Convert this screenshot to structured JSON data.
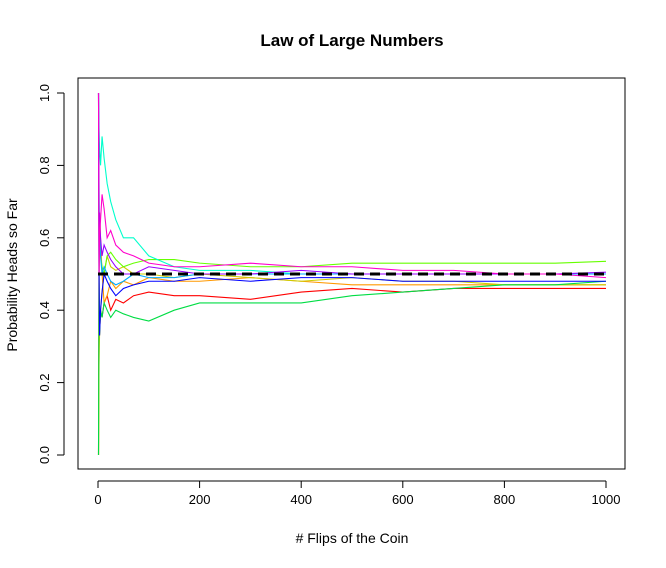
{
  "chart_data": {
    "type": "line",
    "title": "Law of Large Numbers",
    "xlabel": "# Flips of the Coin",
    "ylabel": "Probability Heads so Far",
    "xlim": [
      0,
      1000
    ],
    "ylim": [
      0,
      1
    ],
    "xticks": [
      "0",
      "200",
      "400",
      "600",
      "800",
      "1000"
    ],
    "yticks": [
      "0.0",
      "0.2",
      "0.4",
      "0.6",
      "0.8",
      "1.0"
    ],
    "grid": false,
    "reference_line": {
      "y": 0.5,
      "style": "dashed",
      "color": "#000000"
    },
    "series": [
      {
        "color": "#ff0000",
        "x": [
          1,
          2,
          3,
          5,
          8,
          12,
          18,
          25,
          35,
          50,
          70,
          100,
          150,
          200,
          300,
          400,
          500,
          600,
          700,
          800,
          900,
          1000
        ],
        "y": [
          0,
          0.5,
          0.33,
          0.4,
          0.38,
          0.42,
          0.44,
          0.4,
          0.43,
          0.42,
          0.44,
          0.45,
          0.44,
          0.44,
          0.43,
          0.45,
          0.46,
          0.45,
          0.46,
          0.46,
          0.46,
          0.46
        ]
      },
      {
        "color": "#ff9900",
        "x": [
          1,
          2,
          3,
          5,
          8,
          12,
          18,
          25,
          35,
          50,
          70,
          100,
          150,
          200,
          300,
          400,
          500,
          600,
          700,
          800,
          900,
          1000
        ],
        "y": [
          0,
          0.5,
          0.67,
          0.6,
          0.5,
          0.42,
          0.44,
          0.48,
          0.46,
          0.48,
          0.47,
          0.49,
          0.48,
          0.48,
          0.49,
          0.48,
          0.47,
          0.47,
          0.47,
          0.47,
          0.47,
          0.47
        ]
      },
      {
        "color": "#cccc00",
        "x": [
          1,
          2,
          3,
          5,
          8,
          12,
          18,
          25,
          35,
          50,
          70,
          100,
          150,
          200,
          300,
          400,
          500,
          600,
          700,
          800,
          900,
          1000
        ],
        "y": [
          0,
          0.25,
          0.33,
          0.4,
          0.45,
          0.5,
          0.55,
          0.52,
          0.51,
          0.52,
          0.5,
          0.5,
          0.49,
          0.5,
          0.49,
          0.48,
          0.49,
          0.48,
          0.48,
          0.47,
          0.47,
          0.47
        ]
      },
      {
        "color": "#66ff00",
        "x": [
          1,
          2,
          3,
          5,
          8,
          12,
          18,
          25,
          35,
          50,
          70,
          100,
          150,
          200,
          300,
          400,
          500,
          600,
          700,
          800,
          900,
          1000
        ],
        "y": [
          1,
          0.5,
          0.6,
          0.55,
          0.52,
          0.5,
          0.55,
          0.56,
          0.54,
          0.52,
          0.53,
          0.54,
          0.54,
          0.53,
          0.52,
          0.52,
          0.53,
          0.53,
          0.53,
          0.53,
          0.53,
          0.535
        ]
      },
      {
        "color": "#00dd44",
        "x": [
          1,
          2,
          3,
          5,
          8,
          12,
          18,
          25,
          35,
          50,
          70,
          100,
          150,
          200,
          300,
          400,
          500,
          600,
          700,
          800,
          900,
          1000
        ],
        "y": [
          0,
          0.5,
          0.33,
          0.4,
          0.38,
          0.42,
          0.4,
          0.38,
          0.4,
          0.39,
          0.38,
          0.37,
          0.4,
          0.42,
          0.42,
          0.42,
          0.44,
          0.45,
          0.46,
          0.47,
          0.47,
          0.48
        ]
      },
      {
        "color": "#00ffcc",
        "x": [
          1,
          2,
          3,
          5,
          8,
          12,
          18,
          25,
          35,
          50,
          70,
          100,
          150,
          200,
          300,
          400,
          500,
          600,
          700,
          800,
          900,
          1000
        ],
        "y": [
          1,
          0.9,
          0.85,
          0.8,
          0.88,
          0.82,
          0.75,
          0.7,
          0.65,
          0.6,
          0.6,
          0.55,
          0.52,
          0.51,
          0.51,
          0.5,
          0.5,
          0.5,
          0.5,
          0.5,
          0.5,
          0.5
        ]
      },
      {
        "color": "#00aaff",
        "x": [
          1,
          2,
          3,
          5,
          8,
          12,
          18,
          25,
          35,
          50,
          70,
          100,
          150,
          200,
          300,
          400,
          500,
          600,
          700,
          800,
          900,
          1000
        ],
        "y": [
          1,
          0.75,
          0.6,
          0.55,
          0.5,
          0.52,
          0.5,
          0.48,
          0.47,
          0.48,
          0.5,
          0.49,
          0.49,
          0.5,
          0.5,
          0.5,
          0.5,
          0.5,
          0.5,
          0.5,
          0.5,
          0.5
        ]
      },
      {
        "color": "#0000ff",
        "x": [
          1,
          2,
          3,
          5,
          8,
          12,
          18,
          25,
          35,
          50,
          70,
          100,
          150,
          200,
          300,
          400,
          500,
          600,
          700,
          800,
          900,
          1000
        ],
        "y": [
          1,
          0.5,
          0.33,
          0.4,
          0.45,
          0.5,
          0.48,
          0.46,
          0.44,
          0.46,
          0.47,
          0.48,
          0.48,
          0.49,
          0.48,
          0.49,
          0.49,
          0.48,
          0.48,
          0.48,
          0.48,
          0.48
        ]
      },
      {
        "color": "#9900ff",
        "x": [
          1,
          2,
          3,
          5,
          8,
          12,
          18,
          25,
          35,
          50,
          70,
          100,
          150,
          200,
          300,
          400,
          500,
          600,
          700,
          800,
          900,
          1000
        ],
        "y": [
          1,
          0.5,
          0.67,
          0.6,
          0.55,
          0.58,
          0.56,
          0.54,
          0.52,
          0.5,
          0.5,
          0.52,
          0.51,
          0.5,
          0.5,
          0.51,
          0.5,
          0.5,
          0.5,
          0.5,
          0.5,
          0.505
        ]
      },
      {
        "color": "#ff00cc",
        "x": [
          1,
          2,
          3,
          5,
          8,
          12,
          18,
          25,
          35,
          50,
          70,
          100,
          150,
          200,
          300,
          400,
          500,
          600,
          700,
          800,
          900,
          1000
        ],
        "y": [
          1,
          0.5,
          0.6,
          0.65,
          0.72,
          0.68,
          0.6,
          0.62,
          0.58,
          0.56,
          0.55,
          0.53,
          0.52,
          0.52,
          0.53,
          0.52,
          0.52,
          0.51,
          0.51,
          0.5,
          0.5,
          0.49
        ]
      }
    ]
  }
}
